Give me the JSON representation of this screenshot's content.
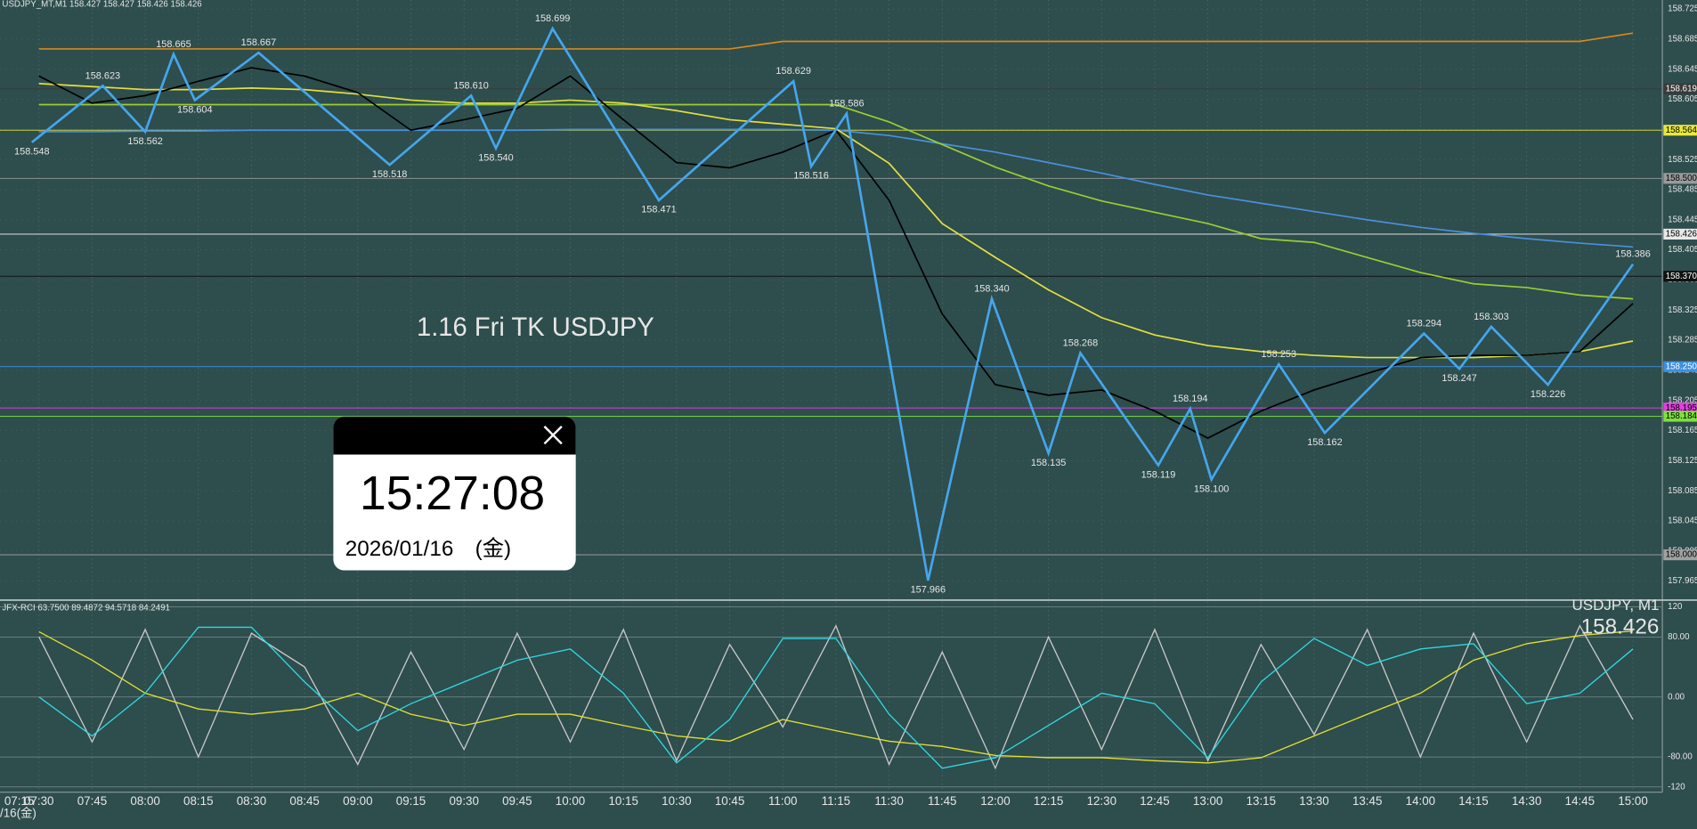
{
  "chart_data": [
    {
      "type": "line",
      "title": "USDJPY_MT,M1  158.427 158.427 158.426 158.426",
      "xlim": [
        "07:19",
        "15:08"
      ],
      "xticks": [
        "07:30",
        "07:45",
        "08:00",
        "08:15",
        "08:30",
        "08:45",
        "09:00",
        "09:15",
        "09:30",
        "09:45",
        "10:00",
        "10:15",
        "10:30",
        "10:45",
        "11:00",
        "11:15",
        "11:30",
        "11:45",
        "12:00",
        "12:15",
        "12:30",
        "12:45",
        "13:00",
        "13:15",
        "13:30",
        "13:45",
        "14:00",
        "14:15",
        "14:30",
        "14:45",
        "15:00"
      ],
      "x": [
        "07:30",
        "07:45",
        "08:00",
        "08:15",
        "08:30",
        "08:45",
        "09:00",
        "09:15",
        "09:30",
        "09:45",
        "10:00",
        "10:15",
        "10:30",
        "10:45",
        "11:00",
        "11:15",
        "11:30",
        "11:45",
        "12:00",
        "12:15",
        "12:30",
        "12:45",
        "13:00",
        "13:15",
        "13:30",
        "13:45",
        "14:00",
        "14:15",
        "14:30",
        "14:45",
        "15:00"
      ],
      "ylim": [
        157.942,
        158.737
      ],
      "yticks": [
        158.725,
        158.685,
        158.645,
        158.605,
        158.565,
        158.525,
        158.485,
        158.445,
        158.405,
        158.365,
        158.325,
        158.285,
        158.245,
        158.205,
        158.165,
        158.125,
        158.085,
        158.045,
        158.005,
        157.965
      ],
      "grid": true,
      "series": [
        {
          "color": "#d88a1c",
          "values": [
            158.672,
            158.672,
            158.672,
            158.672,
            158.672,
            158.672,
            158.672,
            158.672,
            158.672,
            158.672,
            158.672,
            158.672,
            158.672,
            158.672,
            158.682,
            158.682,
            158.682,
            158.682,
            158.682,
            158.682,
            158.682,
            158.682,
            158.682,
            158.682,
            158.682,
            158.682,
            158.682,
            158.682,
            158.682,
            158.682,
            158.693
          ]
        },
        {
          "color": "#4a90d9",
          "values": [
            158.562,
            158.562,
            158.563,
            158.563,
            158.564,
            158.564,
            158.564,
            158.564,
            158.564,
            158.564,
            158.565,
            158.565,
            158.565,
            158.565,
            158.565,
            158.564,
            158.557,
            158.546,
            158.535,
            158.521,
            158.507,
            158.492,
            158.478,
            158.467,
            158.456,
            158.445,
            158.435,
            158.427,
            158.42,
            158.414,
            158.409
          ]
        },
        {
          "color": "#9acd32",
          "values": [
            158.598,
            158.598,
            158.598,
            158.598,
            158.598,
            158.598,
            158.598,
            158.598,
            158.598,
            158.598,
            158.598,
            158.598,
            158.598,
            158.598,
            158.598,
            158.598,
            158.575,
            158.545,
            158.515,
            158.49,
            158.47,
            158.455,
            158.44,
            158.42,
            158.415,
            158.395,
            158.375,
            158.36,
            158.355,
            158.345,
            158.34
          ]
        },
        {
          "color": "#e0e040",
          "values": [
            158.626,
            158.622,
            158.618,
            158.618,
            158.62,
            158.618,
            158.612,
            158.604,
            158.6,
            158.6,
            158.604,
            158.6,
            158.59,
            158.578,
            158.572,
            158.566,
            158.52,
            158.44,
            158.395,
            158.352,
            158.315,
            158.292,
            158.278,
            158.27,
            158.265,
            158.262,
            158.262,
            158.262,
            158.265,
            158.27,
            158.284
          ]
        },
        {
          "color": "#000000",
          "values": [
            158.636,
            158.6,
            158.61,
            158.629,
            158.647,
            158.636,
            158.614,
            158.564,
            158.578,
            158.593,
            158.636,
            158.578,
            158.521,
            158.514,
            158.535,
            158.564,
            158.471,
            158.32,
            158.226,
            158.212,
            158.219,
            158.191,
            158.155,
            158.191,
            158.219,
            158.241,
            158.262,
            158.265,
            158.265,
            158.27,
            158.334
          ]
        }
      ],
      "swing_points": {
        "color": "#45a6ec",
        "x": [
          "07:28",
          "07:48",
          "08:00",
          "08:08",
          "08:14",
          "08:32",
          "09:09",
          "09:32",
          "09:39",
          "09:55",
          "10:25",
          "11:03",
          "11:08",
          "11:18",
          "11:41",
          "11:59",
          "12:15",
          "12:24",
          "12:46",
          "12:55",
          "13:01",
          "13:20",
          "13:33",
          "14:01",
          "14:11",
          "14:20",
          "14:36",
          "15:00"
        ],
        "values": [
          158.548,
          158.623,
          158.562,
          158.665,
          158.604,
          158.667,
          158.518,
          158.61,
          158.54,
          158.699,
          158.471,
          158.629,
          158.516,
          158.586,
          157.966,
          158.34,
          158.135,
          158.268,
          158.119,
          158.194,
          158.1,
          158.253,
          158.162,
          158.294,
          158.247,
          158.303,
          158.226,
          158.386
        ],
        "value_labels": [
          "158.548",
          "158.623",
          "158.562",
          "158.665",
          "158.604",
          "158.667",
          "158.518",
          "158.610",
          "158.540",
          "158.699",
          "158.471",
          "158.629",
          "158.516",
          "158.586",
          "157.966",
          "158.340",
          "158.135",
          "158.268",
          "158.119",
          "158.194",
          "158.100",
          "158.253",
          "158.162",
          "158.294",
          "158.247",
          "158.303",
          "158.226",
          "158.386"
        ]
      },
      "levels": [
        {
          "value": 158.619,
          "label": "158.619",
          "color": "#3a3a3a",
          "text_color": "#ffffff"
        },
        {
          "value": 158.564,
          "label": "158.564",
          "color": "#e8e83a",
          "text_color": "#000000"
        },
        {
          "value": 158.5,
          "label": "158.500",
          "color": "#9a9a9a",
          "text_color": "#000000"
        },
        {
          "value": 158.426,
          "label": "158.426",
          "color": "#e8e8e8",
          "text_color": "#000000"
        },
        {
          "value": 158.37,
          "label": "158.370",
          "color": "#111111",
          "text_color": "#ffffff"
        },
        {
          "value": 158.25,
          "label": "158.250",
          "color": "#3d8fe0",
          "text_color": "#ffffff"
        },
        {
          "value": 158.195,
          "label": "158.195",
          "color": "#e040e0",
          "text_color": "#000000"
        },
        {
          "value": 158.184,
          "label": "158.184",
          "color": "#7fe040",
          "text_color": "#000000"
        },
        {
          "value": 158.0,
          "label": "158.000",
          "color": "#a0a0a0",
          "text_color": "#000000"
        }
      ]
    },
    {
      "type": "line",
      "title": "JFX-RCI 63.7500 89.4872 94.5718 84.2491",
      "x": [
        "07:30",
        "07:45",
        "08:00",
        "08:15",
        "08:30",
        "08:45",
        "09:00",
        "09:15",
        "09:30",
        "09:45",
        "10:00",
        "10:15",
        "10:30",
        "10:45",
        "11:00",
        "11:15",
        "11:30",
        "11:45",
        "12:00",
        "12:15",
        "12:30",
        "12:45",
        "13:00",
        "13:15",
        "13:30",
        "13:45",
        "14:00",
        "14:15",
        "14:30",
        "14:45",
        "15:00"
      ],
      "ylim": [
        -127,
        127
      ],
      "yticks": [
        120,
        {
          "value": 80,
          "label": "80.00"
        },
        {
          "value": 0,
          "label": "0.00"
        },
        {
          "value": -80,
          "label": "-80.00"
        },
        -120
      ],
      "series": [
        {
          "color": "#c8c8c8",
          "values": [
            80,
            -60,
            90,
            -80,
            85,
            40,
            -90,
            60,
            -70,
            85,
            -60,
            90,
            -85,
            70,
            -40,
            95,
            -90,
            60,
            -95,
            80,
            -70,
            90,
            -85,
            70,
            -50,
            90,
            -80,
            85,
            -60,
            95,
            -30
          ]
        },
        {
          "color": "#e0e030",
          "values": [
            87,
            49,
            5,
            -16,
            -23,
            -16,
            5,
            -23,
            -38,
            -23,
            -23,
            -38,
            -52,
            -59,
            -30,
            -45,
            -59,
            -66,
            -78,
            -81,
            -81,
            -85,
            -88,
            -81,
            -52,
            -23,
            5,
            49,
            71,
            82,
            88
          ]
        },
        {
          "color": "#30d8e0",
          "values": [
            0,
            -52,
            5,
            93,
            93,
            20,
            -45,
            -9,
            20,
            49,
            64,
            5,
            -88,
            -30,
            78,
            78,
            -23,
            -95,
            -81,
            -38,
            5,
            -9,
            -81,
            20,
            78,
            42,
            64,
            71,
            -9,
            5,
            64
          ]
        }
      ]
    }
  ],
  "overlay_text": "1.16 Fri TK USDJPY",
  "clock": {
    "time": "15:27:08",
    "date": "2026/01/16　(金)"
  },
  "symbol_label": "USDJPY, M1",
  "last_price": 158.426,
  "axis_start": {
    "time": "07:15",
    "date": "/16(金)"
  }
}
